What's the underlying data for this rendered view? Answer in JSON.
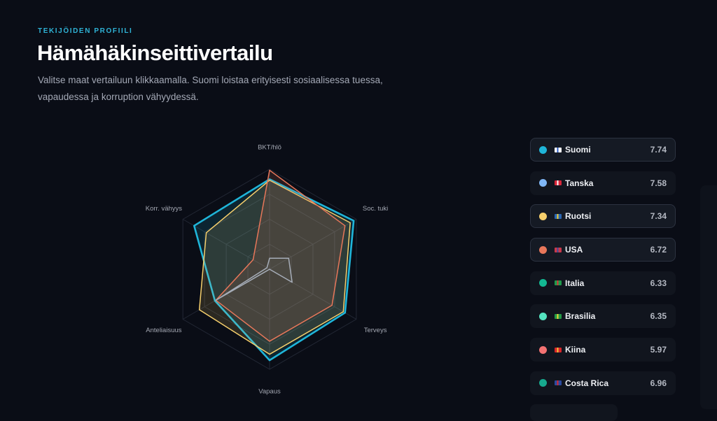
{
  "header": {
    "eyebrow": "TEKIJÖIDEN PROFIILI",
    "title": "Hämähäkinseittivertailu",
    "description": "Valitse maat vertailuun klikkaamalla. Suomi loistaa erityisesti sosiaalisessa tuessa, vapaudessa ja korruption vähyydessä."
  },
  "countries": [
    {
      "name": "Suomi",
      "score": "7.74",
      "color": "#1fb5d9",
      "flag_icon": "finland-flag-icon",
      "flag_colors": [
        "#ffffff",
        "#2a5bc4"
      ],
      "selected": true
    },
    {
      "name": "Tanska",
      "score": "7.58",
      "color": "#7fb6f5",
      "flag_icon": "denmark-flag-icon",
      "flag_colors": [
        "#d8263a",
        "#ffffff"
      ],
      "selected": false
    },
    {
      "name": "Ruotsi",
      "score": "7.34",
      "color": "#f6cf6c",
      "flag_icon": "sweden-flag-icon",
      "flag_colors": [
        "#2a66b4",
        "#f4cf2e"
      ],
      "selected": true
    },
    {
      "name": "USA",
      "score": "6.72",
      "color": "#e8775a",
      "flag_icon": "usa-flag-icon",
      "flag_colors": [
        "#c9384a",
        "#3a4d9a"
      ],
      "selected": true
    },
    {
      "name": "Italia",
      "score": "6.33",
      "color": "#13b892",
      "flag_icon": "italy-flag-icon",
      "flag_colors": [
        "#1d9a4a",
        "#d8323a"
      ],
      "selected": false
    },
    {
      "name": "Brasilia",
      "score": "6.35",
      "color": "#55e3c0",
      "flag_icon": "brazil-flag-icon",
      "flag_colors": [
        "#239a46",
        "#f2d23a"
      ],
      "selected": false
    },
    {
      "name": "Kiina",
      "score": "5.97",
      "color": "#f37272",
      "flag_icon": "china-flag-icon",
      "flag_colors": [
        "#d8262a",
        "#f2c23a"
      ],
      "selected": false
    },
    {
      "name": "Costa Rica",
      "score": "6.96",
      "color": "#17a98e",
      "flag_icon": "costa-rica-flag-icon",
      "flag_colors": [
        "#2a4aa0",
        "#d8262a"
      ],
      "selected": false
    }
  ],
  "chart_data": {
    "type": "radar",
    "axes": [
      "BKT/hlö",
      "Soc. tuki",
      "Terveys",
      "Vapaus",
      "Anteliaisuus",
      "Korr. vähyys"
    ],
    "range": [
      0,
      1
    ],
    "grid_levels": [
      0.25,
      0.5,
      0.75,
      1.0
    ],
    "grid": true,
    "series": [
      {
        "name": "Suomi",
        "color": "#1fb5d9",
        "values": [
          0.9,
          0.97,
          0.87,
          0.91,
          0.63,
          0.87
        ]
      },
      {
        "name": "Ruotsi",
        "color": "#f6cf6c",
        "values": [
          0.89,
          0.93,
          0.85,
          0.85,
          0.81,
          0.73
        ]
      },
      {
        "name": "USA",
        "color": "#e8775a",
        "values": [
          0.99,
          0.87,
          0.72,
          0.72,
          0.62,
          0.19
        ]
      },
      {
        "name": "",
        "color": "#a6adb8",
        "values": [
          0.11,
          0.22,
          0.26,
          0.0,
          0.62,
          0.03
        ]
      }
    ]
  }
}
